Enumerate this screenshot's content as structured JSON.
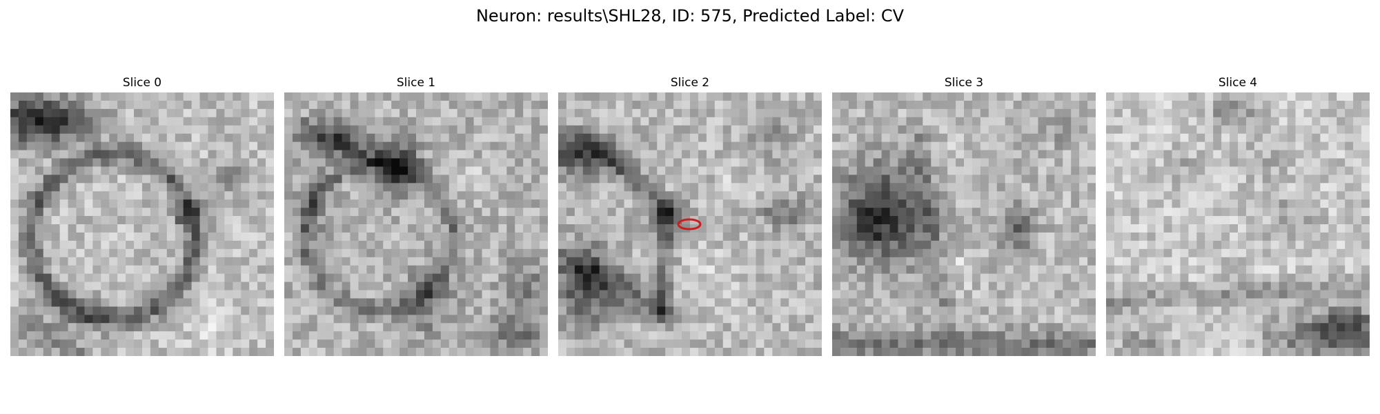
{
  "figure": {
    "title": "Neuron: results\\SHL28, ID: 575, Predicted Label: CV"
  },
  "panels": [
    {
      "title": "Slice 0"
    },
    {
      "title": "Slice 1"
    },
    {
      "title": "Slice 2"
    },
    {
      "title": "Slice 3"
    },
    {
      "title": "Slice 4"
    }
  ],
  "colors": {
    "marker": "#d11a1a",
    "background": "#ffffff"
  }
}
